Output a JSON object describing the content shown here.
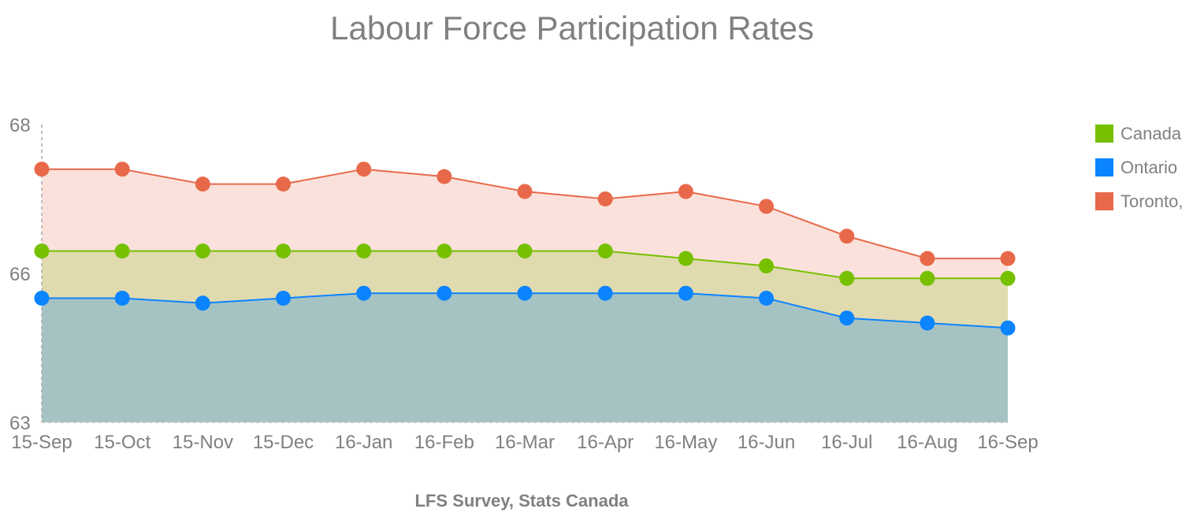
{
  "chart_data": {
    "type": "area",
    "title": "Labour Force Participation Rates",
    "xlabel": "LFS Survey, Stats Canada",
    "ylabel": "",
    "categories": [
      "15-Sep",
      "15-Oct",
      "15-Nov",
      "15-Dec",
      "16-Jan",
      "16-Feb",
      "16-Mar",
      "16-Apr",
      "16-May",
      "16-Jun",
      "16-Jul",
      "16-Aug",
      "16-Sep"
    ],
    "y_ticks": [
      "68",
      "66",
      "63"
    ],
    "y_tick_values": [
      68,
      66,
      63
    ],
    "y_scale_note": "",
    "series": [
      {
        "name": "Canada",
        "color": "#76c000",
        "values": [
          66.3,
          66.3,
          66.3,
          66.3,
          66.3,
          66.3,
          66.3,
          66.3,
          66.2,
          66.1,
          65.9,
          65.9,
          65.9
        ]
      },
      {
        "name": "Ontario",
        "color": "#0a84ff",
        "values": [
          65.5,
          65.5,
          65.4,
          65.5,
          65.6,
          65.6,
          65.6,
          65.6,
          65.6,
          65.5,
          65.1,
          65.0,
          64.9
        ]
      },
      {
        "name": "Toronto,",
        "color": "#e8694a",
        "values": [
          67.4,
          67.4,
          67.2,
          67.2,
          67.4,
          67.3,
          67.1,
          67.0,
          67.1,
          66.9,
          66.5,
          66.2,
          66.2
        ]
      }
    ],
    "legend_position": "right",
    "grid": false
  }
}
